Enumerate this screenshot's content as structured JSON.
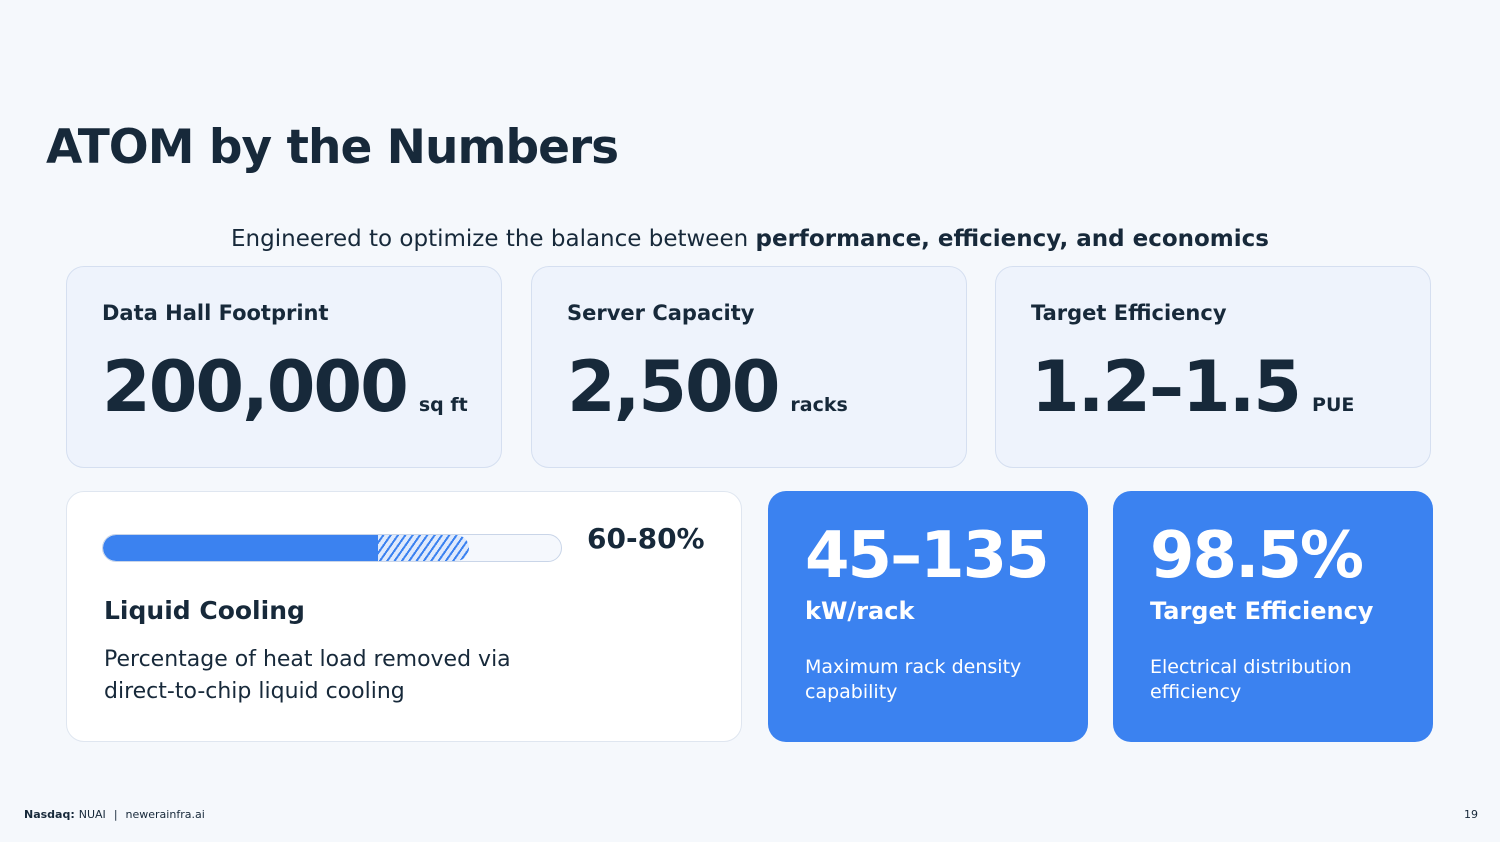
{
  "title": "ATOM by the Numbers",
  "subtitle": {
    "prefix": "Engineered to optimize the balance between ",
    "emphasis": "performance, efficiency, and economics"
  },
  "stats": [
    {
      "label": "Data Hall Footprint",
      "value": "200,000",
      "unit": "sq ft"
    },
    {
      "label": "Server Capacity",
      "value": "2,500",
      "unit": "racks"
    },
    {
      "label": "Target Efficiency",
      "value": "1.2–1.5",
      "unit": "PUE"
    }
  ],
  "cooling": {
    "range": "60-80%",
    "range_low_pct": 60,
    "range_high_pct": 80,
    "title": "Liquid Cooling",
    "description": "Percentage of heat load removed via direct-to-chip liquid cooling"
  },
  "highlights": [
    {
      "value": "45–135",
      "label": "kW/rack",
      "description": "Maximum rack density capability"
    },
    {
      "value": "98.5%",
      "label": "Target Efficiency",
      "description": "Electrical distribution efficiency"
    }
  ],
  "footer": {
    "ticker_label": "Nasdaq:",
    "ticker": "NUAI",
    "separator": "|",
    "website": "newerainfra.ai",
    "page_number": "19"
  },
  "colors": {
    "accent": "#3b82f0",
    "text": "#17293a",
    "background": "#f5f8fc"
  }
}
